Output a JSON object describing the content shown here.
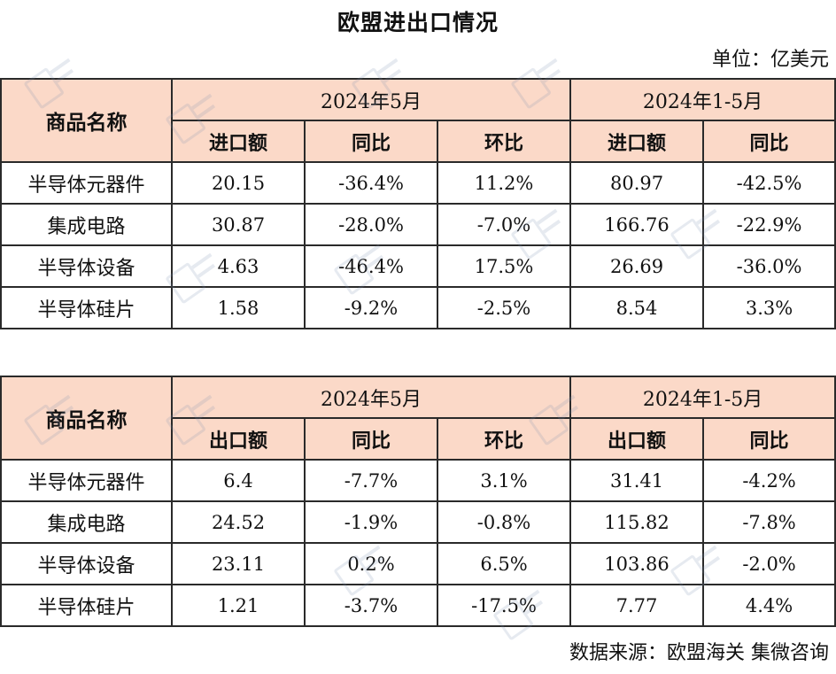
{
  "title": "欧盟进出口情况",
  "unit": "单位：亿美元",
  "source": "数据来源：欧盟海关 集微咨询",
  "colors": {
    "header_bg": "#fbd9c8",
    "border": "#2a2a2a",
    "text": "#111111"
  },
  "import_table": {
    "name_header": "商品名称",
    "period1": "2024年5月",
    "period2": "2024年1-5月",
    "subheaders": [
      "进口额",
      "同比",
      "环比",
      "进口额",
      "同比"
    ],
    "rows": [
      {
        "name": "半导体元器件",
        "values": [
          "20.15",
          "-36.4%",
          "11.2%",
          "80.97",
          "-42.5%"
        ]
      },
      {
        "name": "集成电路",
        "values": [
          "30.87",
          "-28.0%",
          "-7.0%",
          "166.76",
          "-22.9%"
        ]
      },
      {
        "name": "半导体设备",
        "values": [
          "4.63",
          "-46.4%",
          "17.5%",
          "26.69",
          "-36.0%"
        ]
      },
      {
        "name": "半导体硅片",
        "values": [
          "1.58",
          "-9.2%",
          "-2.5%",
          "8.54",
          "3.3%"
        ]
      }
    ]
  },
  "export_table": {
    "name_header": "商品名称",
    "period1": "2024年5月",
    "period2": "2024年1-5月",
    "subheaders": [
      "出口额",
      "同比",
      "环比",
      "出口额",
      "同比"
    ],
    "rows": [
      {
        "name": "半导体元器件",
        "values": [
          "6.4",
          "-7.7%",
          "3.1%",
          "31.41",
          "-4.2%"
        ]
      },
      {
        "name": "集成电路",
        "values": [
          "24.52",
          "-1.9%",
          "-0.8%",
          "115.82",
          "-7.8%"
        ]
      },
      {
        "name": "半导体设备",
        "values": [
          "23.11",
          "0.2%",
          "6.5%",
          "103.86",
          "-2.0%"
        ]
      },
      {
        "name": "半导体硅片",
        "values": [
          "1.21",
          "-3.7%",
          "-17.5%",
          "7.77",
          "4.4%"
        ]
      }
    ]
  }
}
